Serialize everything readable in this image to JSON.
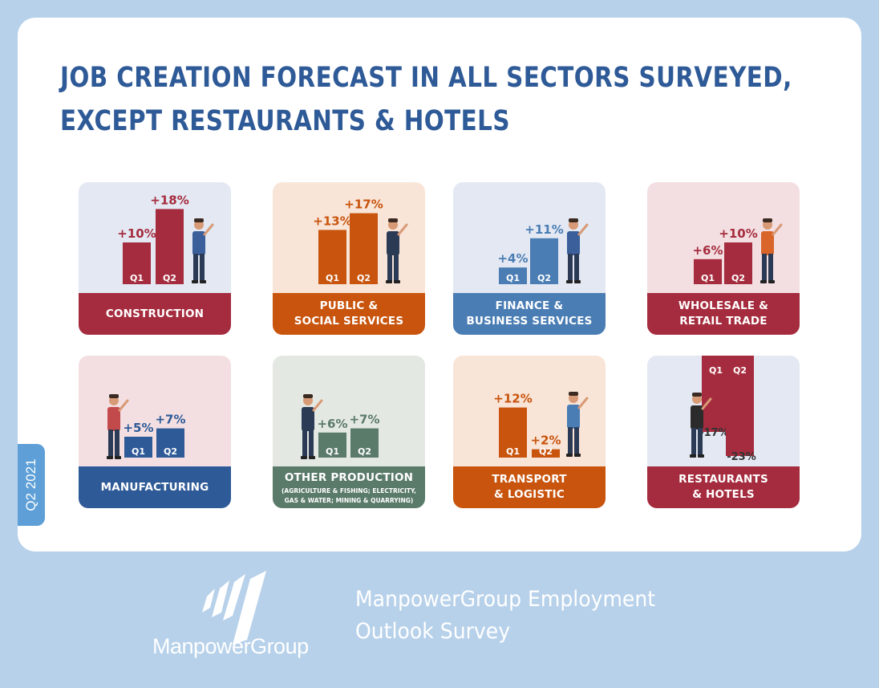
{
  "title": {
    "line1": "JOB CREATION FORECAST IN ALL SECTORS SURVEYED,",
    "line2": "EXCEPT RESTAURANTS & HOTELS"
  },
  "side_tab": "Q2 2021",
  "brand": {
    "name": "ManpowerGroup",
    "survey_line1": "ManpowerGroup Employment",
    "survey_line2": "Outlook Survey"
  },
  "colors": {
    "page_bg": "#b7d1ea",
    "red": "#a52c3e",
    "orange": "#c8540d",
    "blue": "#4a7db4",
    "navy": "#2e5a97",
    "green": "#5a7a6a"
  },
  "chart_data": [
    {
      "type": "bar",
      "sector_line1": "CONSTRUCTION",
      "sector_line2": "",
      "sector_sub": "",
      "categories": [
        "Q1",
        "Q2"
      ],
      "values": [
        10,
        18
      ],
      "value_labels": [
        "+10%",
        "+18%"
      ],
      "bar_color": "#a52c3e",
      "tile_bg": "#e3e8f2",
      "figure": "worker-icon"
    },
    {
      "type": "bar",
      "sector_line1": "PUBLIC &",
      "sector_line2": "SOCIAL SERVICES",
      "sector_sub": "",
      "categories": [
        "Q1",
        "Q2"
      ],
      "values": [
        13,
        17
      ],
      "value_labels": [
        "+13%",
        "+17%"
      ],
      "bar_color": "#c8540d",
      "tile_bg": "#f9e5d8",
      "figure": "speaker-at-podium-icon"
    },
    {
      "type": "bar",
      "sector_line1": "FINANCE &",
      "sector_line2": "BUSINESS SERVICES",
      "sector_sub": "",
      "categories": [
        "Q1",
        "Q2"
      ],
      "values": [
        4,
        11
      ],
      "value_labels": [
        "+4%",
        "+11%"
      ],
      "bar_color": "#4a7db4",
      "tile_bg": "#e3e8f2",
      "figure": "businesswoman-icon"
    },
    {
      "type": "bar",
      "sector_line1": "WHOLESALE &",
      "sector_line2": "RETAIL TRADE",
      "sector_sub": "",
      "categories": [
        "Q1",
        "Q2"
      ],
      "values": [
        6,
        10
      ],
      "value_labels": [
        "+6%",
        "+10%"
      ],
      "bar_color": "#a52c3e",
      "tile_bg": "#f3dfe2",
      "figure": "seated-shopper-icon"
    },
    {
      "type": "bar",
      "sector_line1": "MANUFACTURING",
      "sector_line2": "",
      "sector_sub": "",
      "categories": [
        "Q1",
        "Q2"
      ],
      "values": [
        5,
        7
      ],
      "value_labels": [
        "+5%",
        "+7%"
      ],
      "bar_color": "#2e5a97",
      "tile_bg": "#f3dfe2",
      "figure": "factory-worker-icon"
    },
    {
      "type": "bar",
      "sector_line1": "OTHER PRODUCTION",
      "sector_line2": "",
      "sector_sub": "(AGRICULTURE & FISHING; ELECTRICITY,|GAS & WATER; MINING & QUARRYING)",
      "categories": [
        "Q1",
        "Q2"
      ],
      "values": [
        6,
        7
      ],
      "value_labels": [
        "+6%",
        "+7%"
      ],
      "bar_color": "#5a7a6a",
      "tile_bg": "#e4e8e3",
      "figure": "farmer-icon"
    },
    {
      "type": "bar",
      "sector_line1": "TRANSPORT",
      "sector_line2": "& LOGISTIC",
      "sector_sub": "",
      "categories": [
        "Q1",
        "Q2"
      ],
      "values": [
        12,
        2
      ],
      "value_labels": [
        "+12%",
        "+2%"
      ],
      "bar_color": "#c8540d",
      "tile_bg": "#f9e5d8",
      "figure": "courier-icon"
    },
    {
      "type": "bar",
      "sector_line1": "RESTAURANTS",
      "sector_line2": "& HOTELS",
      "sector_sub": "",
      "categories": [
        "Q1",
        "Q2"
      ],
      "values": [
        -17,
        -23
      ],
      "value_labels": [
        "-17%",
        "-23%"
      ],
      "bar_color": "#a52c3e",
      "tile_bg": "#e3e8f2",
      "figure": "waiter-icon"
    }
  ]
}
